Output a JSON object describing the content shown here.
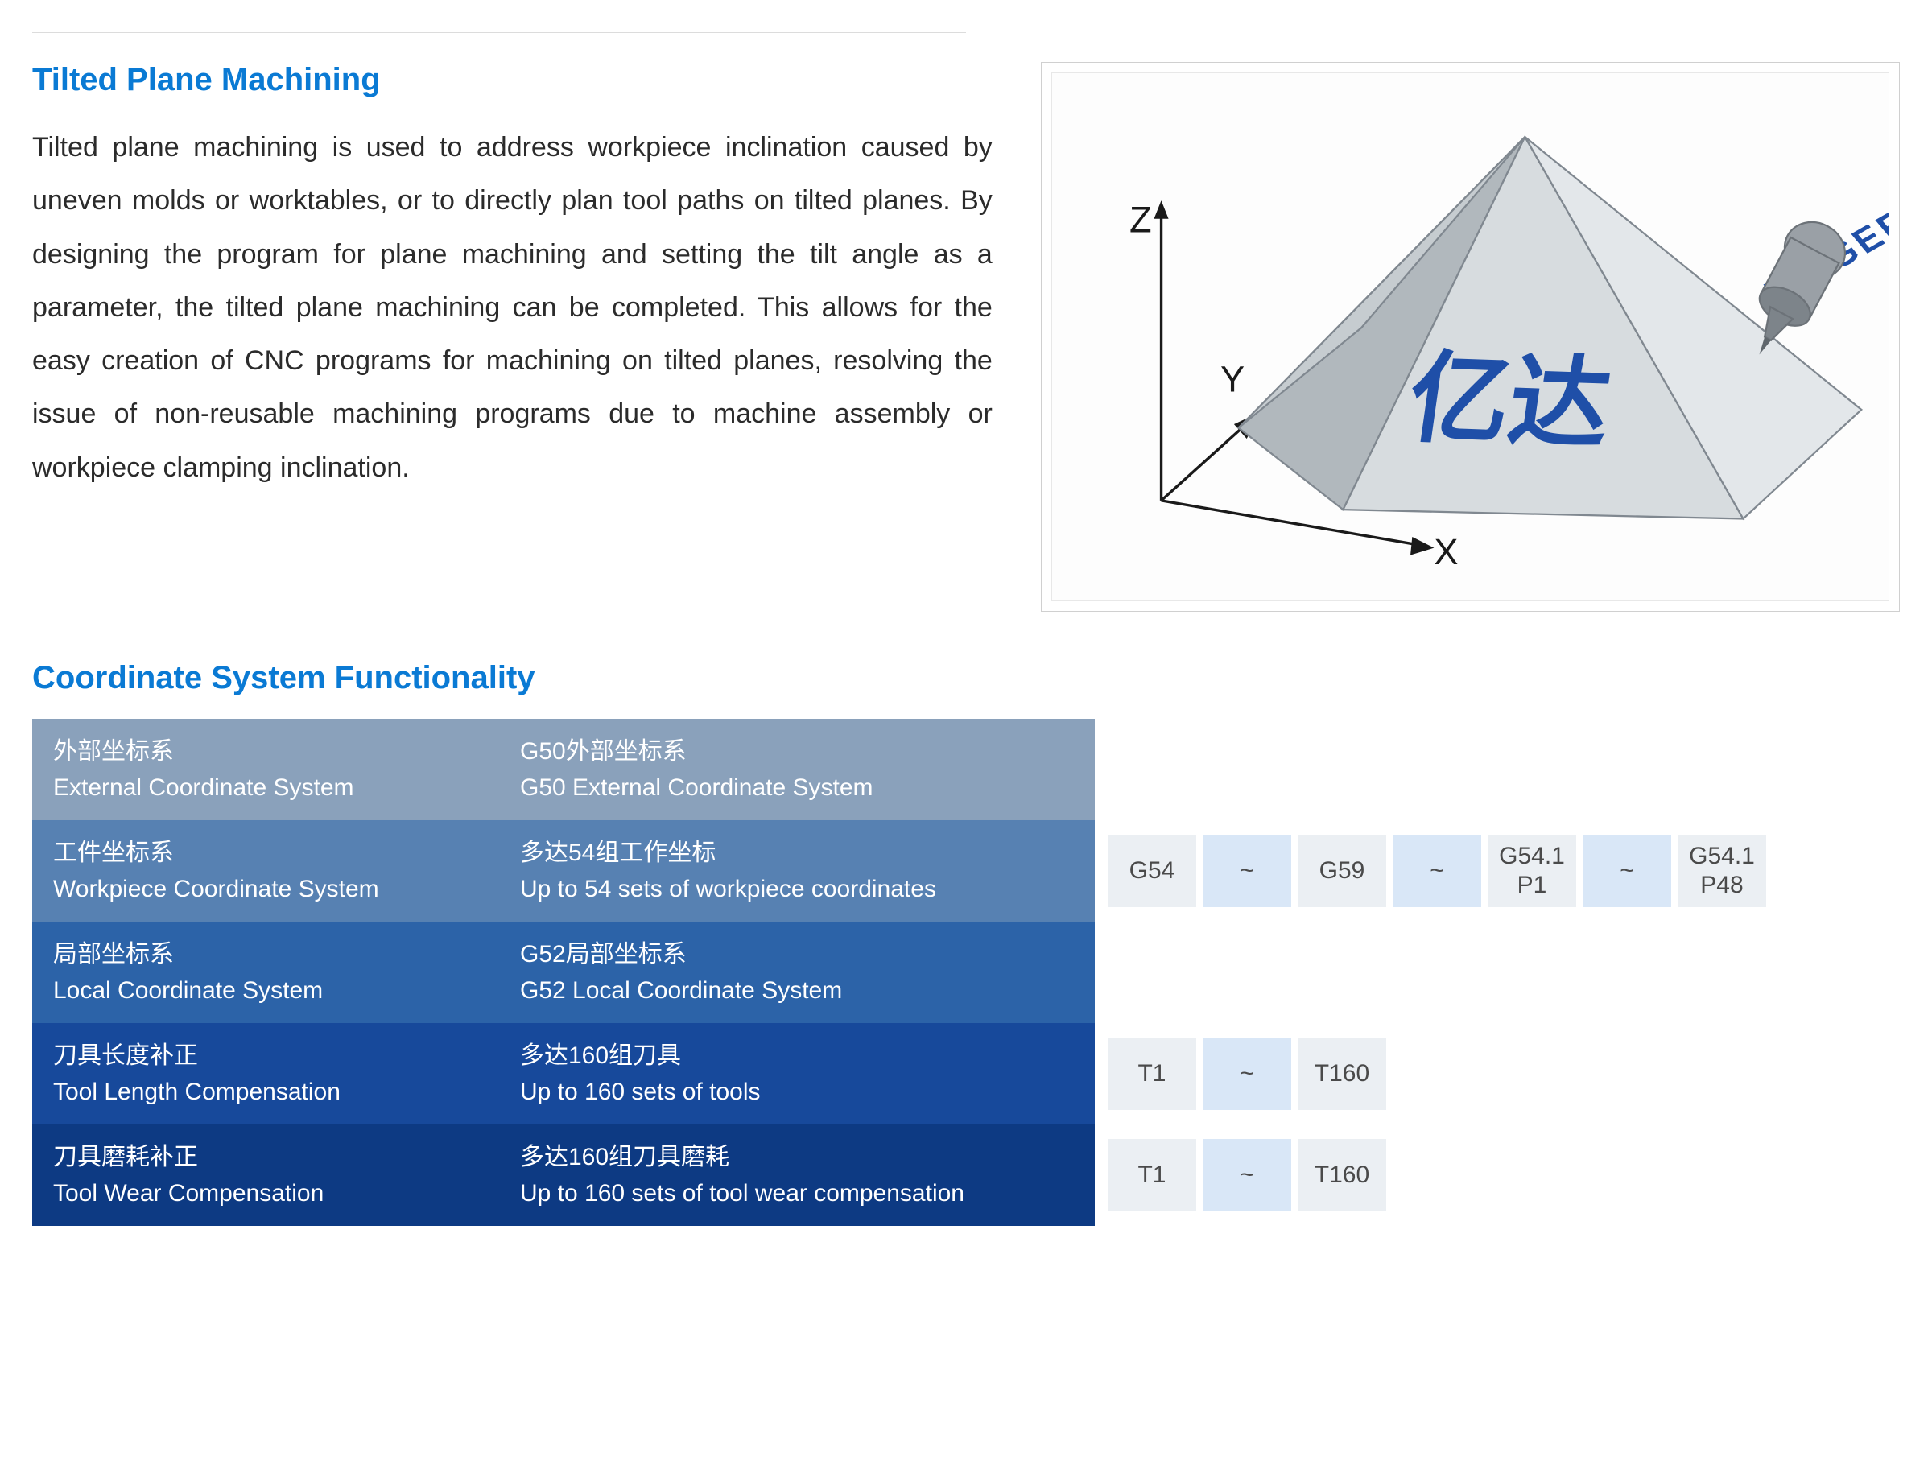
{
  "section1": {
    "title": "Tilted Plane Machining",
    "body": "Tilted plane machining is used to address workpiece inclination caused by uneven molds or worktables, or to directly plan tool paths on tilted planes. By designing the program for plane machining and setting the tilt angle as a parameter, the tilted plane machining can be completed. This allows for the easy creation of CNC programs for machining on tilted planes, resolving the issue of non-reusable machining programs due to machine assembly or workpiece clamping inclination."
  },
  "diagram": {
    "axes": {
      "x": "X",
      "y": "Y",
      "z": "Z"
    },
    "face_text": "亿达",
    "engrave_text": "FINGER",
    "colors": {
      "axis": "#1a1a1a",
      "face_light": "#d7dcdf",
      "face_mid": "#c6ccd0",
      "face_dark": "#b1b8bd",
      "face_right": "#e3e7ea",
      "text_main": "#1f4fa8",
      "tool_body": "#9aa0a6",
      "tool_dark": "#7d848a"
    }
  },
  "section2": {
    "title": "Coordinate System Functionality"
  },
  "table": {
    "row_colors": [
      "#8aa1bb",
      "#5781b2",
      "#2c63a8",
      "#17499b",
      "#0d3a83"
    ],
    "chip_bg": "#ebeff3",
    "chip_bg_light": "#d9e7f7",
    "chip_text": "#4a4a4a",
    "rows": [
      {
        "a_cn": "外部坐标系",
        "a_en": "External Coordinate System",
        "b_cn": "G50外部坐标系",
        "b_en": "G50 External Coordinate System",
        "chips": []
      },
      {
        "a_cn": "工件坐标系",
        "a_en": "Workpiece Coordinate System",
        "b_cn": "多达54组工作坐标",
        "b_en": "Up to 54 sets of workpiece coordinates",
        "chips": [
          {
            "t": "G54",
            "light": false
          },
          {
            "t": "~",
            "light": true
          },
          {
            "t": "G59",
            "light": false
          },
          {
            "t": "~",
            "light": true
          },
          {
            "t": "G54.1",
            "t2": "P1",
            "light": false
          },
          {
            "t": "~",
            "light": true
          },
          {
            "t": "G54.1",
            "t2": "P48",
            "light": false
          }
        ]
      },
      {
        "a_cn": "局部坐标系",
        "a_en": "Local Coordinate System",
        "b_cn": "G52局部坐标系",
        "b_en": "G52 Local Coordinate System",
        "chips": []
      },
      {
        "a_cn": "刀具长度补正",
        "a_en": "Tool Length Compensation",
        "b_cn": "多达160组刀具",
        "b_en": "Up to 160 sets of tools",
        "chips": [
          {
            "t": "T1",
            "light": false
          },
          {
            "t": "~",
            "light": true
          },
          {
            "t": "T160",
            "light": false
          }
        ]
      },
      {
        "a_cn": "刀具磨耗补正",
        "a_en": "Tool Wear Compensation",
        "b_cn": "多达160组刀具磨耗",
        "b_en": "Up to 160 sets of tool wear compensation",
        "chips": [
          {
            "t": "T1",
            "light": false
          },
          {
            "t": "~",
            "light": true
          },
          {
            "t": "T160",
            "light": false
          }
        ]
      }
    ]
  }
}
